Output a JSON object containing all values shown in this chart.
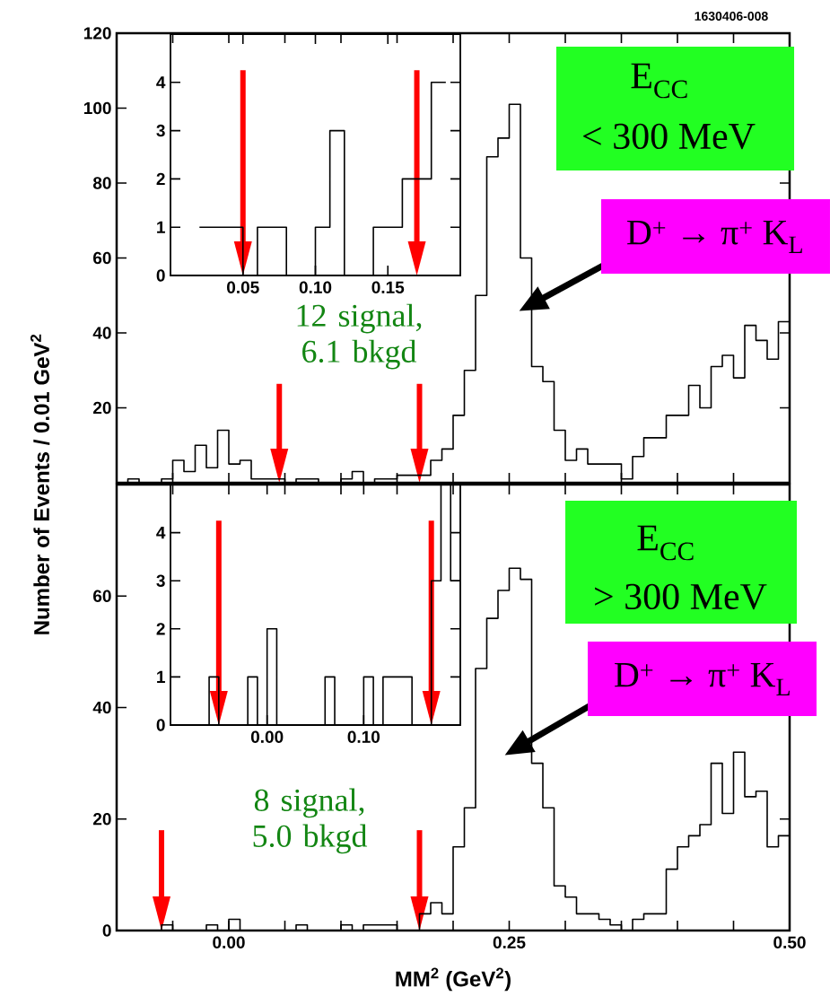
{
  "chart_data": [
    {
      "type": "histogram",
      "color": "#000000",
      "bins": [
        -0.1,
        -0.09,
        -0.08,
        -0.07,
        -0.06,
        -0.05,
        -0.04,
        -0.03,
        -0.02,
        -0.01,
        0,
        0.01,
        0.02,
        0.03,
        0.04,
        0.05,
        0.06,
        0.07,
        0.08,
        0.09,
        0.1,
        0.11,
        0.12,
        0.13,
        0.14,
        0.15,
        0.16,
        0.17,
        0.18,
        0.19,
        0.2,
        0.21,
        0.22,
        0.23,
        0.24,
        0.25,
        0.26,
        0.27,
        0.28,
        0.29,
        0.3,
        0.31,
        0.32,
        0.33,
        0.34,
        0.35,
        0.36,
        0.37,
        0.38,
        0.39,
        0.4,
        0.41,
        0.42,
        0.43,
        0.44,
        0.45,
        0.46,
        0.47,
        0.48,
        0.49,
        0.5
      ],
      "values": [
        0,
        1,
        0,
        0,
        1,
        6,
        3,
        10,
        4,
        14,
        5,
        6,
        1,
        1,
        1,
        0,
        1,
        1,
        0,
        0,
        1,
        3,
        0,
        1,
        1,
        2,
        2,
        2,
        6,
        9,
        18,
        30,
        50,
        87,
        92,
        101,
        60,
        31,
        27,
        14,
        6,
        9,
        5,
        5,
        5,
        1,
        7,
        12,
        12,
        18,
        18,
        26,
        20,
        31,
        34,
        28,
        42,
        38,
        33,
        43
      ],
      "xlim": [
        -0.1,
        0.5
      ],
      "ylim": [
        0,
        120
      ],
      "xticks": [
        {
          "value": -0.1,
          "label": null
        },
        {
          "value": -0.05,
          "label": null
        },
        {
          "value": 0,
          "label": null
        },
        {
          "value": 0.05,
          "label": null
        },
        {
          "value": 0.1,
          "label": null
        },
        {
          "value": 0.15,
          "label": null
        },
        {
          "value": 0.2,
          "label": null
        },
        {
          "value": 0.25,
          "label": null
        },
        {
          "value": 0.3,
          "label": null
        },
        {
          "value": 0.35,
          "label": null
        },
        {
          "value": 0.4,
          "label": null
        },
        {
          "value": 0.45,
          "label": null
        },
        {
          "value": 0.5,
          "label": null
        }
      ],
      "yticks": [
        20,
        40,
        60,
        80,
        100,
        120
      ],
      "tick_labels": "y",
      "ref_lines": [
        {
          "axis": "x",
          "value": 0.045,
          "color": "#ff0000"
        },
        {
          "axis": "x",
          "value": 0.17,
          "color": "#ff0000"
        }
      ],
      "annotations": [
        "1630406-008",
        "E$_{CC}$",
        "< 300 MeV",
        "D$^{+}$ → π$^{+}$ K$_{L}$",
        "12 signal, 6.1 bkgd"
      ]
    },
    {
      "type": "histogram",
      "color": "#000000",
      "bins": [
        0.02,
        0.03,
        0.04,
        0.05,
        0.06,
        0.07,
        0.08,
        0.09,
        0.1,
        0.11,
        0.12,
        0.13,
        0.14,
        0.15,
        0.16,
        0.17,
        0.18,
        0.19
      ],
      "values": [
        1,
        1,
        1,
        0,
        1,
        1,
        0,
        0,
        1,
        3,
        0,
        0,
        1,
        1,
        2,
        2,
        4
      ],
      "xlim": [
        0,
        0.2
      ],
      "ylim": [
        0,
        5
      ],
      "xticks": [
        0.05,
        {
          "value": 0.1,
          "label": "0.10"
        },
        0.15
      ],
      "yticks": [
        0,
        1,
        2,
        3,
        4
      ],
      "ref_lines": [
        {
          "axis": "x",
          "value": 0.05,
          "color": "#ff0000"
        },
        {
          "axis": "x",
          "value": 0.17,
          "color": "#ff0000"
        }
      ]
    },
    {
      "type": "histogram",
      "color": "#000000",
      "bins": [
        -0.1,
        -0.09,
        -0.08,
        -0.07,
        -0.06,
        -0.05,
        -0.04,
        -0.03,
        -0.02,
        -0.01,
        0,
        0.01,
        0.02,
        0.03,
        0.04,
        0.05,
        0.06,
        0.07,
        0.08,
        0.09,
        0.1,
        0.11,
        0.12,
        0.13,
        0.14,
        0.15,
        0.16,
        0.17,
        0.18,
        0.19,
        0.2,
        0.21,
        0.22,
        0.23,
        0.24,
        0.25,
        0.26,
        0.27,
        0.28,
        0.29,
        0.3,
        0.31,
        0.32,
        0.33,
        0.34,
        0.35,
        0.36,
        0.37,
        0.38,
        0.39,
        0.4,
        0.41,
        0.42,
        0.43,
        0.44,
        0.45,
        0.46,
        0.47,
        0.48,
        0.49,
        0.5
      ],
      "values": [
        0,
        0,
        0,
        0,
        1,
        0,
        0,
        0,
        1,
        0,
        2,
        0,
        0,
        0,
        0,
        0,
        1,
        0,
        0,
        0,
        1,
        0,
        1,
        1,
        1,
        0,
        0,
        3,
        5,
        3,
        15,
        22,
        47,
        56,
        61,
        65,
        63,
        30,
        22,
        8,
        6,
        3,
        3,
        2,
        1,
        0,
        2,
        3,
        3,
        11,
        15,
        17,
        19,
        30,
        21,
        32,
        24,
        25,
        15,
        17
      ],
      "xlim": [
        -0.1,
        0.5
      ],
      "ylim": [
        0,
        80
      ],
      "xticks": [
        {
          "value": -0.1,
          "label": null
        },
        {
          "value": -0.05,
          "label": null
        },
        {
          "value": 0,
          "label": "0.00"
        },
        {
          "value": 0.05,
          "label": null
        },
        {
          "value": 0.1,
          "label": null
        },
        {
          "value": 0.15,
          "label": null
        },
        {
          "value": 0.2,
          "label": null
        },
        {
          "value": 0.25,
          "label": "0.25"
        },
        {
          "value": 0.3,
          "label": null
        },
        {
          "value": 0.35,
          "label": null
        },
        {
          "value": 0.4,
          "label": null
        },
        {
          "value": 0.45,
          "label": null
        },
        {
          "value": 0.5,
          "label": "0.50"
        }
      ],
      "yticks": [
        0,
        20,
        40,
        60
      ],
      "xlabel": "MM$^{2}$ (GeV$^{2}$)",
      "ylabel": "Number of Events / 0.01 GeV$^{2}$",
      "ref_lines": [
        {
          "axis": "x",
          "value": -0.06,
          "color": "#ff0000"
        },
        {
          "axis": "x",
          "value": 0.17,
          "color": "#ff0000"
        }
      ],
      "annotations": [
        "E$_{CC}$",
        "> 300 MeV",
        "D$^{+}$ → π$^{+}$ K$_{L}$",
        "8 signal, 5.0 bkgd"
      ]
    },
    {
      "type": "histogram",
      "color": "#000000",
      "bins": [
        -0.1,
        -0.09,
        -0.08,
        -0.07,
        -0.06,
        -0.05,
        -0.04,
        -0.03,
        -0.02,
        -0.01,
        0,
        0.01,
        0.02,
        0.03,
        0.04,
        0.05,
        0.06,
        0.07,
        0.08,
        0.09,
        0.1,
        0.11,
        0.12,
        0.13,
        0.14,
        0.15,
        0.16,
        0.17,
        0.18,
        0.19,
        0.2
      ],
      "values": [
        0,
        0,
        0,
        0,
        1,
        0,
        0,
        0,
        1,
        0,
        2,
        0,
        0,
        0,
        0,
        0,
        1,
        0,
        0,
        0,
        1,
        0,
        1,
        1,
        1,
        0,
        0,
        3,
        5,
        3
      ],
      "xlim": [
        -0.1,
        0.2
      ],
      "ylim": [
        0,
        5
      ],
      "xticks": [
        {
          "value": 0,
          "label": "0.00"
        },
        {
          "value": 0.1,
          "label": "0.10"
        }
      ],
      "yticks": [
        0,
        1,
        2,
        3,
        4
      ],
      "ref_lines": [
        {
          "axis": "x",
          "value": -0.05,
          "color": "#ff0000"
        },
        {
          "axis": "x",
          "value": 0.17,
          "color": "#ff0000"
        }
      ]
    }
  ]
}
